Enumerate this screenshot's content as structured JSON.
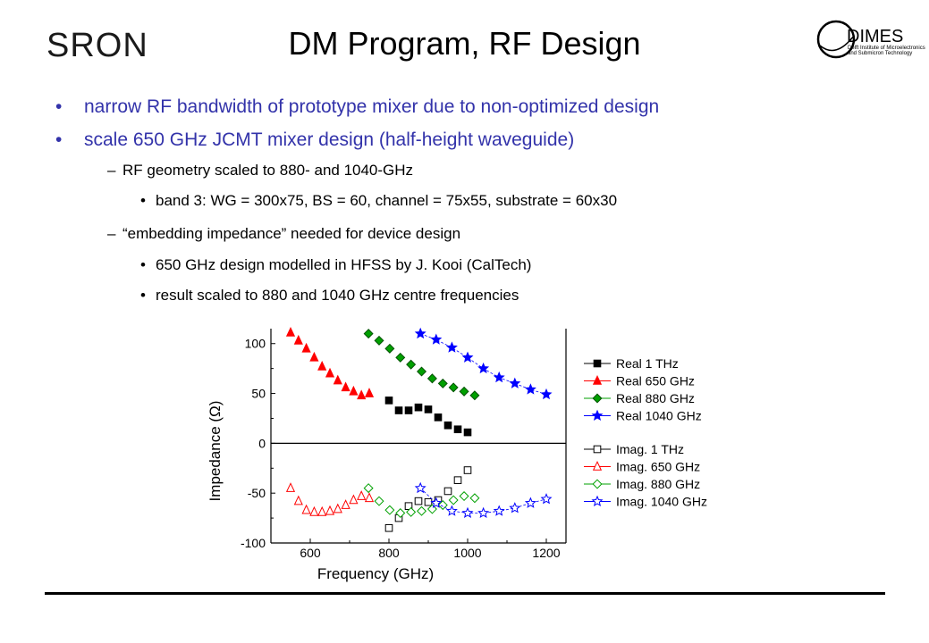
{
  "header": {
    "logo_left": "SRON",
    "title": "DM Program, RF Design",
    "logo_right": "DIMES",
    "logo_right_sub1": "Delft Institute of Microelectronics",
    "logo_right_sub2": "and Submicron Technology"
  },
  "bullets": [
    {
      "level": 1,
      "mark": "•",
      "text": "narrow RF bandwidth of prototype mixer due to non-optimized design"
    },
    {
      "level": 1,
      "mark": "•",
      "text": "scale 650 GHz JCMT mixer design (half-height waveguide)"
    },
    {
      "level": 2,
      "mark": "–",
      "text": "RF geometry scaled to 880- and 1040-GHz"
    },
    {
      "level": 3,
      "mark": "•",
      "text": "band 3:  WG = 300x75, BS = 60, channel = 75x55, substrate = 60x30"
    },
    {
      "level": 2,
      "mark": "–",
      "text": "“embedding impedance” needed for device design"
    },
    {
      "level": 3,
      "mark": "•",
      "text": "650 GHz design modelled in HFSS by J. Kooi (CalTech)"
    },
    {
      "level": 3,
      "mark": "•",
      "text": "result scaled to 880 and 1040 GHz centre frequencies"
    }
  ],
  "chart_data": {
    "type": "scatter",
    "xlabel": "Frequency (GHz)",
    "ylabel": "Impedance (Ω)",
    "xlim": [
      500,
      1250
    ],
    "ylim": [
      -100,
      115
    ],
    "xticks": [
      600,
      800,
      1000,
      1200
    ],
    "yticks": [
      100,
      50,
      0,
      -50,
      -100
    ],
    "zero_line": true,
    "legend_position": "right",
    "series": [
      {
        "name": "Real 1 THz",
        "marker": "square",
        "filled": true,
        "color": "#000000",
        "line": false,
        "x": [
          800,
          825,
          850,
          875,
          900,
          925,
          950,
          975,
          1000
        ],
        "y": [
          43,
          33,
          33,
          36,
          34,
          26,
          18,
          14,
          11
        ]
      },
      {
        "name": "Real 650 GHz",
        "marker": "triangle",
        "filled": true,
        "color": "#ff0000",
        "line": false,
        "x": [
          550,
          570,
          590,
          610,
          630,
          650,
          670,
          690,
          710,
          730,
          750
        ],
        "y": [
          111,
          103,
          95,
          86,
          77,
          70,
          63,
          56,
          52,
          48,
          50
        ]
      },
      {
        "name": "Real 880 GHz",
        "marker": "diamond",
        "filled": true,
        "color": "#00a000",
        "line": false,
        "x": [
          748,
          775,
          802,
          829,
          856,
          883,
          910,
          937,
          964,
          991,
          1018
        ],
        "y": [
          110,
          103,
          95,
          86,
          79,
          72,
          65,
          60,
          56,
          52,
          48
        ]
      },
      {
        "name": "Real 1040 GHz",
        "marker": "star",
        "filled": true,
        "color": "#0000ff",
        "line": true,
        "x": [
          880,
          920,
          960,
          1000,
          1040,
          1080,
          1120,
          1160,
          1200
        ],
        "y": [
          110,
          104,
          96,
          86,
          75,
          66,
          60,
          54,
          49
        ]
      },
      {
        "name": "Imag. 1 THz",
        "marker": "square",
        "filled": false,
        "color": "#000000",
        "line": false,
        "x": [
          800,
          825,
          850,
          875,
          900,
          925,
          950,
          975,
          1000
        ],
        "y": [
          -85,
          -75,
          -63,
          -58,
          -59,
          -57,
          -48,
          -37,
          -27
        ]
      },
      {
        "name": "Imag. 650 GHz",
        "marker": "triangle",
        "filled": false,
        "color": "#ff0000",
        "line": false,
        "x": [
          550,
          570,
          590,
          610,
          630,
          650,
          670,
          690,
          710,
          730,
          750
        ],
        "y": [
          -45,
          -58,
          -67,
          -69,
          -69,
          -68,
          -66,
          -62,
          -57,
          -53,
          -55
        ]
      },
      {
        "name": "Imag. 880 GHz",
        "marker": "diamond",
        "filled": false,
        "color": "#00a000",
        "line": false,
        "x": [
          748,
          775,
          802,
          829,
          856,
          883,
          910,
          937,
          964,
          991,
          1018
        ],
        "y": [
          -45,
          -58,
          -67,
          -70,
          -69,
          -68,
          -66,
          -62,
          -57,
          -53,
          -55
        ]
      },
      {
        "name": "Imag. 1040 GHz",
        "marker": "star",
        "filled": false,
        "color": "#0000ff",
        "line": true,
        "x": [
          880,
          920,
          960,
          1000,
          1040,
          1080,
          1120,
          1160,
          1200
        ],
        "y": [
          -45,
          -60,
          -68,
          -70,
          -70,
          -68,
          -65,
          -60,
          -56
        ]
      }
    ]
  }
}
